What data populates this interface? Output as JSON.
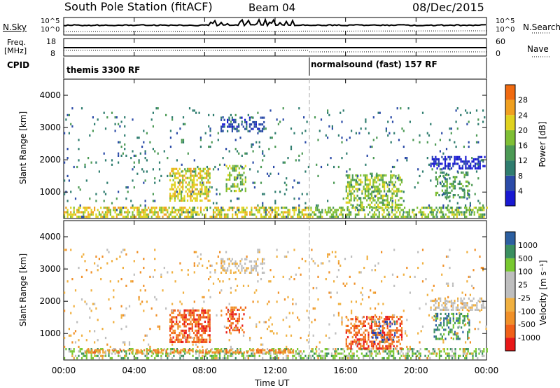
{
  "header": {
    "station": "South Pole Station (fitACF)",
    "beam": "Beam 04",
    "date": "08/Dec/2015"
  },
  "summary_panels": {
    "nsky_label": "N.Sky",
    "nsearch_label": "N.Search",
    "noise_ticks_left": [
      "10^5",
      "10^0"
    ],
    "noise_ticks_right": [
      "10^5",
      "10^0"
    ],
    "freq_label_line1": "Freq.",
    "freq_label_line2": "[MHz]",
    "freq_ticks": [
      "18",
      "8"
    ],
    "nave_label": "Nave",
    "nave_ticks": [
      "60",
      "0"
    ],
    "cpid_label": "CPID",
    "cpid_segments": [
      {
        "text": "themis 3300 RF",
        "start_hour": 0
      },
      {
        "text": "normalsound (fast) 157 RF",
        "start_hour": 14
      }
    ]
  },
  "colors": {
    "power_scale": [
      "#1919d2",
      "#2b4ba8",
      "#2f7d6f",
      "#4c9a55",
      "#7fbf35",
      "#e0d21f",
      "#f0a020",
      "#f06a10",
      "#e02020"
    ],
    "velocity_scale": [
      "#e81818",
      "#f06018",
      "#f09028",
      "#f0b040",
      "#bebebe",
      "#bebebe",
      "#78c830",
      "#3a8f60",
      "#2c5fa0",
      "#1a2fc8"
    ]
  },
  "chart_data": [
    {
      "type": "heatmap",
      "title": "",
      "parameter": "Power",
      "ylabel": "Slant Range [km]",
      "colorbar_label": "Power [dB]",
      "colorbar_ticks": [
        "4",
        "8",
        "12",
        "16",
        "20",
        "24",
        "28"
      ],
      "xlim_hours": [
        0,
        24
      ],
      "ylim_km": [
        180,
        4500
      ],
      "yticks": [
        "1000",
        "2000",
        "3000",
        "4000"
      ],
      "regions": [
        {
          "t0": 0.0,
          "t1": 14.0,
          "r0": 200,
          "r1": 500,
          "level": 5,
          "density": 0.55
        },
        {
          "t0": 14.0,
          "t1": 24.0,
          "r0": 200,
          "r1": 520,
          "level": 4,
          "density": 0.45
        },
        {
          "t0": 6.0,
          "t1": 8.3,
          "r0": 700,
          "r1": 1700,
          "level": 5,
          "density": 0.6
        },
        {
          "t0": 9.2,
          "t1": 10.3,
          "r0": 1000,
          "r1": 1800,
          "level": 4,
          "density": 0.5
        },
        {
          "t0": 8.9,
          "t1": 11.4,
          "r0": 2850,
          "r1": 3300,
          "level": 1,
          "density": 0.4
        },
        {
          "t0": 16.0,
          "t1": 19.2,
          "r0": 500,
          "r1": 1500,
          "level": 4,
          "density": 0.5
        },
        {
          "t0": 20.8,
          "t1": 23.9,
          "r0": 1700,
          "r1": 2100,
          "level": 0,
          "density": 0.5
        },
        {
          "t0": 21.0,
          "t1": 23.0,
          "r0": 800,
          "r1": 1600,
          "level": 3,
          "density": 0.35
        },
        {
          "t0": 0.0,
          "t1": 24.0,
          "r0": 200,
          "r1": 3600,
          "level": 2,
          "density": 0.04
        }
      ]
    },
    {
      "type": "heatmap",
      "title": "",
      "parameter": "Velocity",
      "xlabel": "Time UT",
      "ylabel": "Slant Range [km]",
      "colorbar_label": "Velocity [m s⁻¹]",
      "colorbar_ticks": [
        "-1000",
        "-500",
        "-100",
        "-25",
        "25",
        "100",
        "500",
        "1000"
      ],
      "xlim_hours": [
        0,
        24
      ],
      "xticks": [
        "00:00",
        "04:00",
        "08:00",
        "12:00",
        "16:00",
        "20:00",
        "00:00"
      ],
      "ylim_km": [
        180,
        4500
      ],
      "yticks": [
        "1000",
        "2000",
        "3000",
        "4000"
      ],
      "regions": [
        {
          "t0": 0.0,
          "t1": 14.0,
          "r0": 200,
          "r1": 500,
          "level": 6,
          "density": 0.4
        },
        {
          "t0": 1.2,
          "t1": 13.0,
          "r0": 380,
          "r1": 500,
          "level": 2,
          "density": 0.55
        },
        {
          "t0": 14.0,
          "t1": 24.0,
          "r0": 200,
          "r1": 520,
          "level": 6,
          "density": 0.4
        },
        {
          "t0": 6.0,
          "t1": 8.3,
          "r0": 700,
          "r1": 1700,
          "level": 1,
          "density": 0.6
        },
        {
          "t0": 9.2,
          "t1": 10.3,
          "r0": 1000,
          "r1": 1800,
          "level": 1,
          "density": 0.5
        },
        {
          "t0": 8.9,
          "t1": 11.4,
          "r0": 2850,
          "r1": 3300,
          "level": 4,
          "density": 0.4
        },
        {
          "t0": 16.0,
          "t1": 19.2,
          "r0": 500,
          "r1": 1500,
          "level": 1,
          "density": 0.5
        },
        {
          "t0": 17.5,
          "t1": 18.8,
          "r0": 700,
          "r1": 1400,
          "level": 8,
          "density": 0.25
        },
        {
          "t0": 20.8,
          "t1": 23.9,
          "r0": 1700,
          "r1": 2100,
          "level": 4,
          "density": 0.5
        },
        {
          "t0": 21.0,
          "t1": 23.0,
          "r0": 800,
          "r1": 1600,
          "level": 7,
          "density": 0.35
        },
        {
          "t0": 0.0,
          "t1": 24.0,
          "r0": 200,
          "r1": 3600,
          "level": 3,
          "density": 0.04
        }
      ]
    }
  ]
}
